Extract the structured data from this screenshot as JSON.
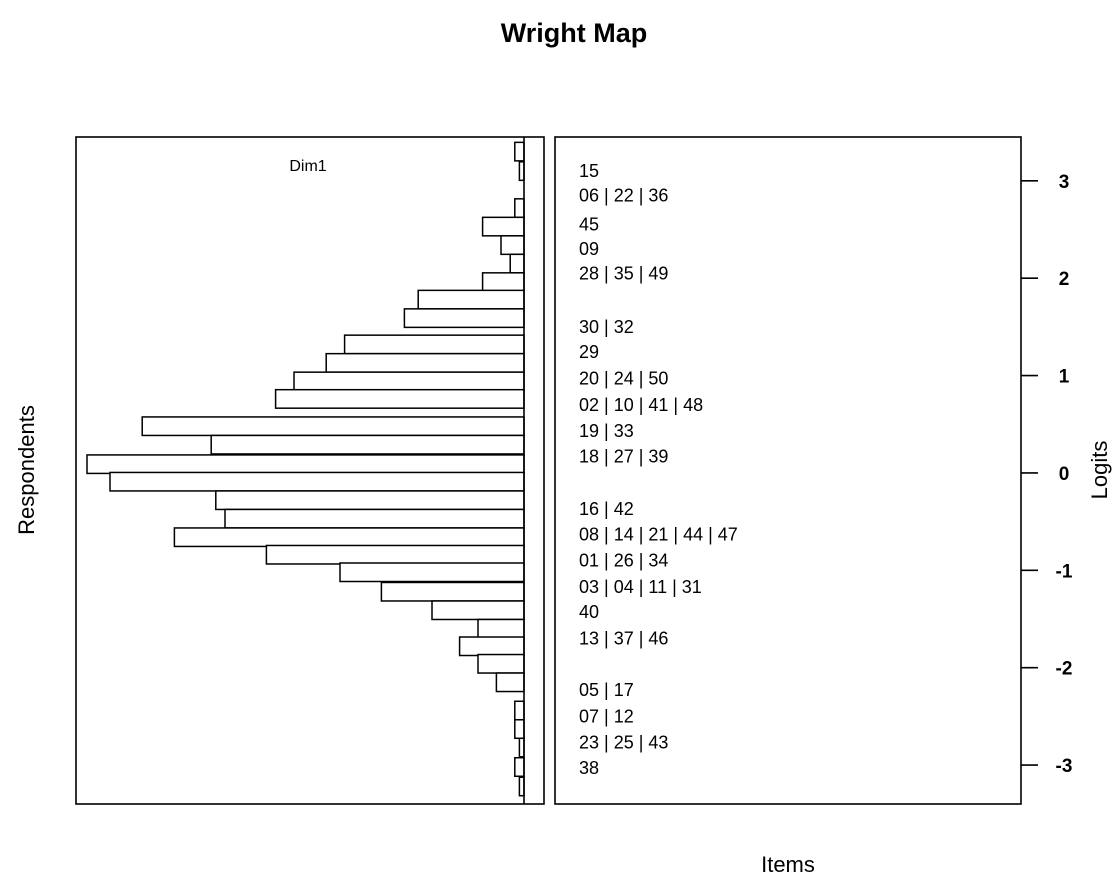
{
  "chart_data": {
    "type": "wright_map",
    "title": "Wright Map",
    "ylabel_left": "Respondents",
    "ylabel_right": "Logits",
    "xlabel": "Items",
    "panel_label": "Dim1",
    "ylim": [
      -3.4,
      3.45
    ],
    "y_ticks": [
      3,
      2,
      1,
      0,
      -1,
      -2,
      -3
    ],
    "histogram": {
      "bin_width": 0.19,
      "bins": [
        {
          "y": 3.3,
          "count": 2
        },
        {
          "y": 3.1,
          "count": 1
        },
        {
          "y": 2.72,
          "count": 2
        },
        {
          "y": 2.53,
          "count": 9
        },
        {
          "y": 2.34,
          "count": 5
        },
        {
          "y": 2.15,
          "count": 3
        },
        {
          "y": 1.96,
          "count": 9
        },
        {
          "y": 1.78,
          "count": 23
        },
        {
          "y": 1.59,
          "count": 26
        },
        {
          "y": 1.32,
          "count": 39
        },
        {
          "y": 1.13,
          "count": 43
        },
        {
          "y": 0.94,
          "count": 50
        },
        {
          "y": 0.76,
          "count": 54
        },
        {
          "y": 0.48,
          "count": 83
        },
        {
          "y": 0.29,
          "count": 68
        },
        {
          "y": 0.09,
          "count": 95
        },
        {
          "y": -0.09,
          "count": 90
        },
        {
          "y": -0.28,
          "count": 67
        },
        {
          "y": -0.47,
          "count": 65
        },
        {
          "y": -0.66,
          "count": 76
        },
        {
          "y": -0.84,
          "count": 56
        },
        {
          "y": -1.02,
          "count": 40
        },
        {
          "y": -1.22,
          "count": 31
        },
        {
          "y": -1.41,
          "count": 20
        },
        {
          "y": -1.6,
          "count": 10
        },
        {
          "y": -1.78,
          "count": 14
        },
        {
          "y": -1.96,
          "count": 10
        },
        {
          "y": -2.15,
          "count": 6
        },
        {
          "y": -2.44,
          "count": 2
        },
        {
          "y": -2.63,
          "count": 2
        },
        {
          "y": -2.82,
          "count": 1
        },
        {
          "y": -3.02,
          "count": 2
        },
        {
          "y": -3.22,
          "count": 1
        }
      ]
    },
    "items": [
      {
        "y": 3.1,
        "label": "15"
      },
      {
        "y": 2.85,
        "label": "06 | 22 | 36"
      },
      {
        "y": 2.55,
        "label": "45"
      },
      {
        "y": 2.3,
        "label": "09"
      },
      {
        "y": 2.05,
        "label": "28 | 35 | 49"
      },
      {
        "y": 1.5,
        "label": "30 | 32"
      },
      {
        "y": 1.24,
        "label": "29"
      },
      {
        "y": 0.97,
        "label": "20 | 24 | 50"
      },
      {
        "y": 0.7,
        "label": "02 | 10 | 41 | 48"
      },
      {
        "y": 0.43,
        "label": "19 | 33"
      },
      {
        "y": 0.17,
        "label": "18 | 27 | 39"
      },
      {
        "y": -0.37,
        "label": "16 | 42"
      },
      {
        "y": -0.63,
        "label": "08 | 14 | 21 | 44 | 47"
      },
      {
        "y": -0.9,
        "label": "01 | 26 | 34"
      },
      {
        "y": -1.17,
        "label": "03 | 04 | 11 | 31"
      },
      {
        "y": -1.43,
        "label": "40"
      },
      {
        "y": -1.7,
        "label": "13 | 37 | 46"
      },
      {
        "y": -2.23,
        "label": "05 | 17"
      },
      {
        "y": -2.5,
        "label": "07 | 12"
      },
      {
        "y": -2.77,
        "label": "23 | 25 | 43"
      },
      {
        "y": -3.03,
        "label": "38"
      }
    ]
  }
}
